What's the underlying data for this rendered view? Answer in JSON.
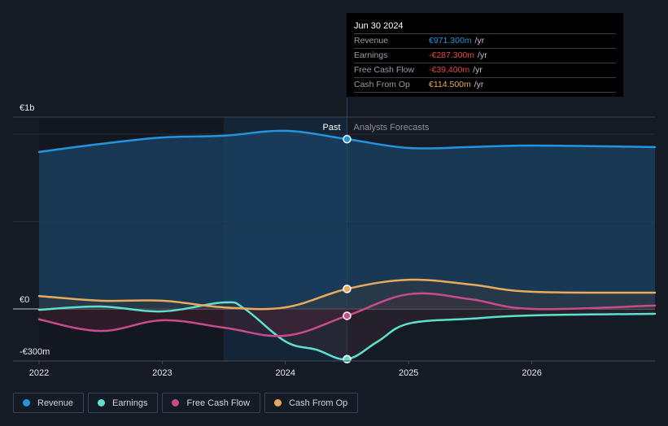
{
  "chart_data": {
    "type": "line",
    "title": "",
    "currency": "€",
    "y_unit": "m",
    "ylim": [
      -300,
      1000
    ],
    "y_ticks": [
      {
        "value": 1000,
        "label": "€1b"
      },
      {
        "value": 0,
        "label": "€0"
      },
      {
        "value": -300,
        "label": "-€300m"
      }
    ],
    "xlim": [
      2022.0,
      2027.0
    ],
    "x_ticks": [
      {
        "value": 2022,
        "label": "2022"
      },
      {
        "value": 2023,
        "label": "2023"
      },
      {
        "value": 2024,
        "label": "2024"
      },
      {
        "value": 2025,
        "label": "2025"
      },
      {
        "value": 2026,
        "label": "2026"
      }
    ],
    "grid": true,
    "past_label": "Past",
    "forecast_label": "Analysts Forecasts",
    "divider_x": 2024.5,
    "highlight_start_x": 2023.5,
    "series": [
      {
        "name": "Revenue",
        "color": "#2394df",
        "points": [
          [
            2022.0,
            898
          ],
          [
            2022.5,
            944
          ],
          [
            2023.0,
            981
          ],
          [
            2023.5,
            991
          ],
          [
            2024.0,
            1019
          ],
          [
            2024.5,
            971.3
          ],
          [
            2025.0,
            921
          ],
          [
            2025.5,
            926
          ],
          [
            2026.0,
            935
          ],
          [
            2027.0,
            926
          ]
        ]
      },
      {
        "name": "Earnings",
        "color": "#5ee0cf",
        "points": [
          [
            2022.0,
            -5
          ],
          [
            2022.5,
            14
          ],
          [
            2023.0,
            -14
          ],
          [
            2023.5,
            37
          ],
          [
            2023.67,
            0
          ],
          [
            2024.0,
            -186
          ],
          [
            2024.25,
            -233
          ],
          [
            2024.5,
            -287.3
          ],
          [
            2024.75,
            -186
          ],
          [
            2025.0,
            -84
          ],
          [
            2025.5,
            -56
          ],
          [
            2026.0,
            -37
          ],
          [
            2027.0,
            -28
          ]
        ]
      },
      {
        "name": "Free Cash Flow",
        "color": "#c84b8c",
        "points": [
          [
            2022.0,
            -60
          ],
          [
            2022.5,
            -126
          ],
          [
            2023.0,
            -65
          ],
          [
            2023.5,
            -107
          ],
          [
            2024.0,
            -153
          ],
          [
            2024.5,
            -39.4
          ],
          [
            2025.0,
            84
          ],
          [
            2025.5,
            56
          ],
          [
            2026.0,
            0
          ],
          [
            2027.0,
            19
          ]
        ]
      },
      {
        "name": "Cash From Op",
        "color": "#e8ab5c",
        "points": [
          [
            2022.0,
            74
          ],
          [
            2022.5,
            47
          ],
          [
            2023.0,
            47
          ],
          [
            2023.5,
            9
          ],
          [
            2024.0,
            9
          ],
          [
            2024.5,
            114.5
          ],
          [
            2025.0,
            167
          ],
          [
            2025.5,
            140
          ],
          [
            2026.0,
            98
          ],
          [
            2027.0,
            93
          ]
        ]
      }
    ],
    "legend_position": "bottom-left"
  },
  "tooltip": {
    "date": "Jun 30 2024",
    "rows": [
      {
        "label": "Revenue",
        "value": "€971.300m",
        "unit": "/yr",
        "color": "#2394df"
      },
      {
        "label": "Earnings",
        "value": "-€287.300m",
        "unit": "/yr",
        "color": "#e64545"
      },
      {
        "label": "Free Cash Flow",
        "value": "-€39.400m",
        "unit": "/yr",
        "color": "#e64545"
      },
      {
        "label": "Cash From Op",
        "value": "€114.500m",
        "unit": "/yr",
        "color": "#e8ab5c"
      }
    ]
  },
  "legend": [
    {
      "label": "Revenue",
      "color": "#2394df"
    },
    {
      "label": "Earnings",
      "color": "#5ee0cf"
    },
    {
      "label": "Free Cash Flow",
      "color": "#c84b8c"
    },
    {
      "label": "Cash From Op",
      "color": "#e8ab5c"
    }
  ]
}
